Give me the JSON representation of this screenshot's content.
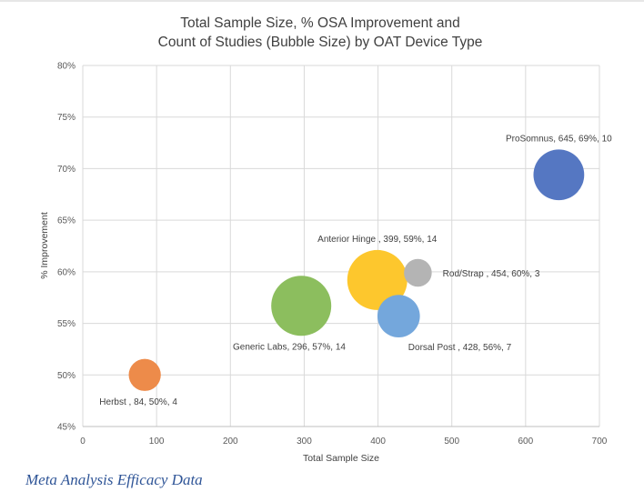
{
  "chart_data": {
    "type": "scatter",
    "subtype": "bubble",
    "title_lines": [
      "Total Sample Size, % OSA Improvement and",
      "Count of Studies (Bubble Size) by OAT Device Type"
    ],
    "xlabel": "Total Sample Size",
    "ylabel": "% Improvement",
    "xlim": [
      0,
      700
    ],
    "ylim": [
      45,
      80
    ],
    "x_ticks": [
      0,
      100,
      200,
      300,
      400,
      500,
      600,
      700
    ],
    "y_ticks": [
      45,
      50,
      55,
      60,
      65,
      70,
      75,
      80
    ],
    "y_tick_suffix": "%",
    "grid": true,
    "series": [
      {
        "name": "Herbst",
        "x": 84,
        "y": 50,
        "size": 4,
        "color": "#ed8b4a",
        "label": "Herbst , 84, 50%,  4",
        "label_pos": "below-left"
      },
      {
        "name": "Generic Labs",
        "x": 296,
        "y": 56.7,
        "size": 14,
        "color": "#8cbe5e",
        "label": "Generic Labs, 296, 57%,  14",
        "label_pos": "below-left"
      },
      {
        "name": "Anterior Hinge",
        "x": 399,
        "y": 59.2,
        "size": 14,
        "color": "#fdc72d",
        "label": "Anterior Hinge , 399, 59%,  14",
        "label_pos": "above"
      },
      {
        "name": "Dorsal Post",
        "x": 428,
        "y": 55.7,
        "size": 7,
        "color": "#74a7dc",
        "label": "Dorsal Post , 428, 56%,  7",
        "label_pos": "below-right"
      },
      {
        "name": "Rod/Strap",
        "x": 454,
        "y": 59.9,
        "size": 3,
        "color": "#b4b4b4",
        "label": "Rod/Strap , 454, 60%,  3",
        "label_pos": "right"
      },
      {
        "name": "ProSomnus",
        "x": 645,
        "y": 69.4,
        "size": 10,
        "color": "#5577c2",
        "label": "ProSomnus, 645, 69%,  10",
        "label_pos": "above"
      }
    ]
  },
  "caption": "Meta Analysis Efficacy Data"
}
